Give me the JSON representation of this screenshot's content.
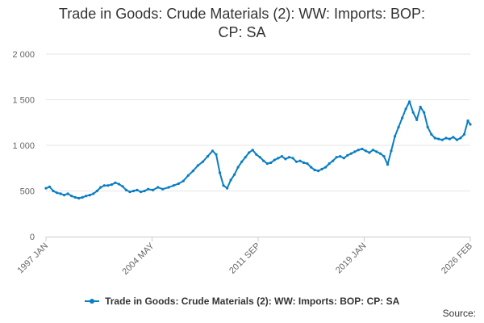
{
  "chart_data": {
    "type": "line",
    "title_line1": "Trade in Goods: Crude Materials (2): WW: Imports: BOP:",
    "title_line2": "CP: SA",
    "x_ticks": [
      "1997 JAN",
      "2004 MAY",
      "2011 SEP",
      "2019 JAN",
      "2026 FEB"
    ],
    "y_ticks": [
      "0",
      "500",
      "1 000",
      "1 500",
      "2 000"
    ],
    "ylim": [
      0,
      2000
    ],
    "xlim": [
      "1997-01",
      "2026-02"
    ],
    "grid": "horizontal",
    "legend_position": "bottom",
    "color": "#0a7ec2",
    "series": [
      {
        "name": "Trade in Goods: Crude Materials (2): WW: Imports: BOP: CP: SA",
        "points": [
          [
            "1997-01",
            530
          ],
          [
            "1997-04",
            545
          ],
          [
            "1997-07",
            500
          ],
          [
            "1997-10",
            480
          ],
          [
            "1998-01",
            470
          ],
          [
            "1998-04",
            455
          ],
          [
            "1998-07",
            470
          ],
          [
            "1998-10",
            445
          ],
          [
            "1999-01",
            430
          ],
          [
            "1999-04",
            420
          ],
          [
            "1999-07",
            430
          ],
          [
            "1999-10",
            445
          ],
          [
            "2000-01",
            455
          ],
          [
            "2000-04",
            470
          ],
          [
            "2000-07",
            500
          ],
          [
            "2000-10",
            540
          ],
          [
            "2001-01",
            560
          ],
          [
            "2001-04",
            560
          ],
          [
            "2001-07",
            570
          ],
          [
            "2001-10",
            590
          ],
          [
            "2002-01",
            575
          ],
          [
            "2002-04",
            550
          ],
          [
            "2002-07",
            510
          ],
          [
            "2002-10",
            490
          ],
          [
            "2003-01",
            500
          ],
          [
            "2003-04",
            510
          ],
          [
            "2003-07",
            490
          ],
          [
            "2003-10",
            500
          ],
          [
            "2004-01",
            520
          ],
          [
            "2004-05",
            510
          ],
          [
            "2004-09",
            540
          ],
          [
            "2005-01",
            520
          ],
          [
            "2005-06",
            540
          ],
          [
            "2005-10",
            560
          ],
          [
            "2006-02",
            580
          ],
          [
            "2006-06",
            610
          ],
          [
            "2006-10",
            670
          ],
          [
            "2007-02",
            720
          ],
          [
            "2007-06",
            780
          ],
          [
            "2007-10",
            820
          ],
          [
            "2008-02",
            880
          ],
          [
            "2008-06",
            940
          ],
          [
            "2008-09",
            900
          ],
          [
            "2008-12",
            700
          ],
          [
            "2009-03",
            560
          ],
          [
            "2009-06",
            530
          ],
          [
            "2009-09",
            620
          ],
          [
            "2009-12",
            680
          ],
          [
            "2010-03",
            760
          ],
          [
            "2010-06",
            820
          ],
          [
            "2010-09",
            870
          ],
          [
            "2010-12",
            920
          ],
          [
            "2011-03",
            950
          ],
          [
            "2011-06",
            900
          ],
          [
            "2011-09",
            870
          ],
          [
            "2011-12",
            830
          ],
          [
            "2012-03",
            800
          ],
          [
            "2012-06",
            810
          ],
          [
            "2012-09",
            840
          ],
          [
            "2012-12",
            860
          ],
          [
            "2013-03",
            880
          ],
          [
            "2013-06",
            850
          ],
          [
            "2013-09",
            870
          ],
          [
            "2013-12",
            860
          ],
          [
            "2014-03",
            820
          ],
          [
            "2014-06",
            830
          ],
          [
            "2014-09",
            810
          ],
          [
            "2014-12",
            800
          ],
          [
            "2015-03",
            760
          ],
          [
            "2015-06",
            730
          ],
          [
            "2015-09",
            720
          ],
          [
            "2015-12",
            740
          ],
          [
            "2016-03",
            760
          ],
          [
            "2016-06",
            800
          ],
          [
            "2016-09",
            830
          ],
          [
            "2016-12",
            870
          ],
          [
            "2017-03",
            880
          ],
          [
            "2017-06",
            860
          ],
          [
            "2017-09",
            890
          ],
          [
            "2017-12",
            910
          ],
          [
            "2018-03",
            930
          ],
          [
            "2018-06",
            950
          ],
          [
            "2018-09",
            960
          ],
          [
            "2018-12",
            940
          ],
          [
            "2019-03",
            920
          ],
          [
            "2019-06",
            950
          ],
          [
            "2019-09",
            930
          ],
          [
            "2019-12",
            910
          ],
          [
            "2020-03",
            880
          ],
          [
            "2020-06",
            790
          ],
          [
            "2020-09",
            940
          ],
          [
            "2020-12",
            1100
          ],
          [
            "2021-03",
            1200
          ],
          [
            "2021-06",
            1300
          ],
          [
            "2021-09",
            1400
          ],
          [
            "2021-12",
            1480
          ],
          [
            "2022-03",
            1360
          ],
          [
            "2022-06",
            1280
          ],
          [
            "2022-09",
            1420
          ],
          [
            "2022-12",
            1360
          ],
          [
            "2023-03",
            1200
          ],
          [
            "2023-06",
            1120
          ],
          [
            "2023-09",
            1080
          ],
          [
            "2023-12",
            1070
          ],
          [
            "2024-03",
            1060
          ],
          [
            "2024-06",
            1080
          ],
          [
            "2024-09",
            1070
          ],
          [
            "2024-12",
            1090
          ],
          [
            "2025-03",
            1060
          ],
          [
            "2025-06",
            1080
          ],
          [
            "2025-09",
            1120
          ],
          [
            "2025-12",
            1270
          ],
          [
            "2026-02",
            1230
          ]
        ]
      }
    ]
  },
  "footer": {
    "source": "Source:"
  }
}
